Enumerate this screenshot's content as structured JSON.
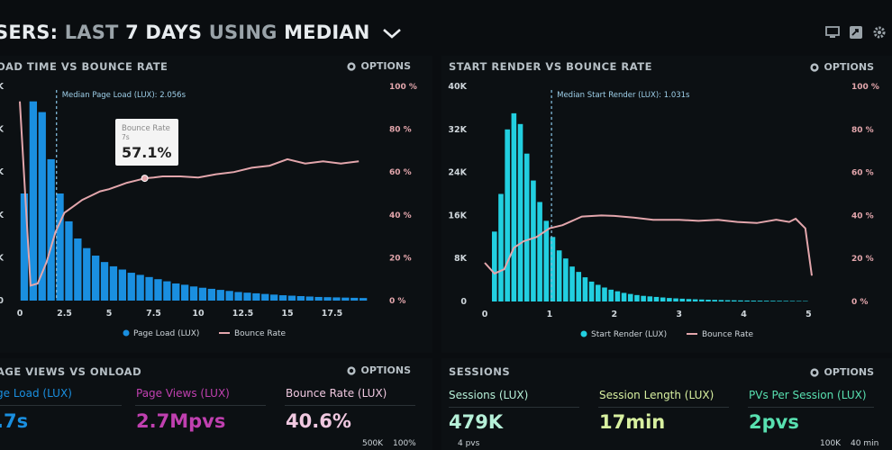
{
  "header": {
    "title_prefix": "SERS: ",
    "title_dim_1": "LAST ",
    "title_bold_1": "7 DAYS ",
    "title_dim_2": "USING ",
    "title_bold_2": "MEDIAN"
  },
  "options_label": "OPTIONS",
  "colors": {
    "page_load_bar": "#1a8fe0",
    "start_render_bar": "#22cfe0",
    "bounce_line": "#e3a6ac",
    "median_line": "#7fb8d8",
    "page_views": "#c040b0",
    "bounce_value": "#f0c8e0",
    "sessions": "#b6f0d8",
    "session_length": "#d8f0a0",
    "pvs_per_session": "#58e0b0"
  },
  "chart_data": [
    {
      "type": "bar",
      "title": "OAD TIME VS BOUNCE RATE",
      "x_ticks": [
        "0",
        "2.5",
        "5",
        "7.5",
        "10",
        "12.5",
        "15",
        "17.5"
      ],
      "xlim": [
        0,
        20
      ],
      "y_left_ticks": [
        "0",
        "K",
        "K",
        "K",
        "K",
        "K"
      ],
      "y_right_ticks": [
        "0 %",
        "20 %",
        "40 %",
        "60 %",
        "80 %",
        "100 %"
      ],
      "y_right_range": [
        0,
        100
      ],
      "median_label": "Median Page Load (LUX): 2.056s",
      "median_x": 2.056,
      "tooltip": {
        "title": "Bounce Rate",
        "sub": "7s",
        "value": "57.1%"
      },
      "legend": [
        "Page Load (LUX)",
        "Bounce Rate"
      ],
      "series": [
        {
          "name": "Page Load (LUX)",
          "bin_width": 0.5,
          "values": [
            0.5,
            0.93,
            0.88,
            0.66,
            0.5,
            0.37,
            0.29,
            0.245,
            0.21,
            0.18,
            0.16,
            0.145,
            0.13,
            0.12,
            0.11,
            0.1,
            0.09,
            0.08,
            0.074,
            0.066,
            0.06,
            0.055,
            0.05,
            0.045,
            0.04,
            0.037,
            0.034,
            0.031,
            0.028,
            0.025,
            0.023,
            0.021,
            0.019,
            0.017,
            0.016,
            0.015,
            0.014,
            0.013,
            0.012
          ]
        },
        {
          "name": "Bounce Rate",
          "x": [
            0,
            0.3,
            0.6,
            1.0,
            1.5,
            2.0,
            2.5,
            3,
            3.5,
            4,
            4.5,
            5,
            5.5,
            6,
            6.5,
            7,
            7.5,
            8,
            9,
            10,
            11,
            12,
            13,
            14,
            15,
            16,
            17,
            18,
            19
          ],
          "values": [
            93,
            50,
            7,
            8,
            18,
            32,
            41,
            44,
            47,
            49,
            51,
            52,
            53.5,
            55,
            56,
            57.1,
            57.5,
            58,
            58,
            57.5,
            59,
            60,
            62,
            63,
            66,
            64,
            65,
            64,
            65
          ]
        }
      ]
    },
    {
      "type": "bar",
      "title": "START RENDER VS BOUNCE RATE",
      "x_ticks": [
        "0",
        "1",
        "2",
        "3",
        "4",
        "5"
      ],
      "xlim": [
        0,
        5.3
      ],
      "y_left_ticks": [
        "0",
        "8K",
        "16K",
        "24K",
        "32K",
        "40K"
      ],
      "ylim": [
        0,
        40000
      ],
      "y_right_ticks": [
        "0 %",
        "20 %",
        "40 %",
        "60 %",
        "80 %",
        "100 %"
      ],
      "y_right_range": [
        0,
        100
      ],
      "median_label": "Median Start Render (LUX): 1.031s",
      "median_x": 1.031,
      "legend": [
        "Start Render (LUX)",
        "Bounce Rate"
      ],
      "series": [
        {
          "name": "Start Render (LUX)",
          "bin_width": 0.1,
          "bin_start": 0.1,
          "values": [
            13000,
            20000,
            32000,
            35000,
            33000,
            27500,
            22500,
            18500,
            15000,
            12000,
            9500,
            8000,
            6500,
            5500,
            4500,
            3700,
            3100,
            2600,
            2200,
            1900,
            1600,
            1400,
            1200,
            1050,
            950,
            850,
            750,
            650,
            580,
            520,
            460,
            410,
            370,
            330,
            300,
            270,
            240,
            220,
            200,
            180,
            160,
            150,
            140,
            130,
            120,
            110,
            100,
            90,
            80
          ]
        },
        {
          "name": "Bounce Rate",
          "x": [
            0,
            0.15,
            0.3,
            0.45,
            0.6,
            0.8,
            1.0,
            1.2,
            1.5,
            1.8,
            2.0,
            2.3,
            2.6,
            3.0,
            3.3,
            3.6,
            3.9,
            4.2,
            4.5,
            4.7,
            4.8,
            4.95,
            5.05
          ],
          "values": [
            18,
            13,
            15,
            25,
            28,
            30,
            34,
            35.5,
            39.5,
            40,
            39.8,
            39,
            38,
            38,
            37.5,
            38,
            37,
            36.5,
            38,
            37,
            38.5,
            34,
            12
          ]
        }
      ]
    }
  ],
  "bottom_left": {
    "title": "AGE VIEWS VS ONLOAD",
    "metrics": [
      {
        "label": "ge Load (LUX)",
        "value": ".7s"
      },
      {
        "label": "Page Views (LUX)",
        "value": "2.7Mpvs"
      },
      {
        "label": "Bounce Rate (LUX)",
        "value": "40.6%"
      }
    ],
    "notes": [
      "500K",
      "100%"
    ]
  },
  "bottom_right": {
    "title": "SESSIONS",
    "metrics": [
      {
        "label": "Sessions (LUX)",
        "value": "479K"
      },
      {
        "label": "Session Length (LUX)",
        "value": "17min"
      },
      {
        "label": "PVs Per Session (LUX)",
        "value": "2pvs"
      }
    ],
    "notes": [
      "4 pvs",
      "100K",
      "40 min"
    ]
  }
}
